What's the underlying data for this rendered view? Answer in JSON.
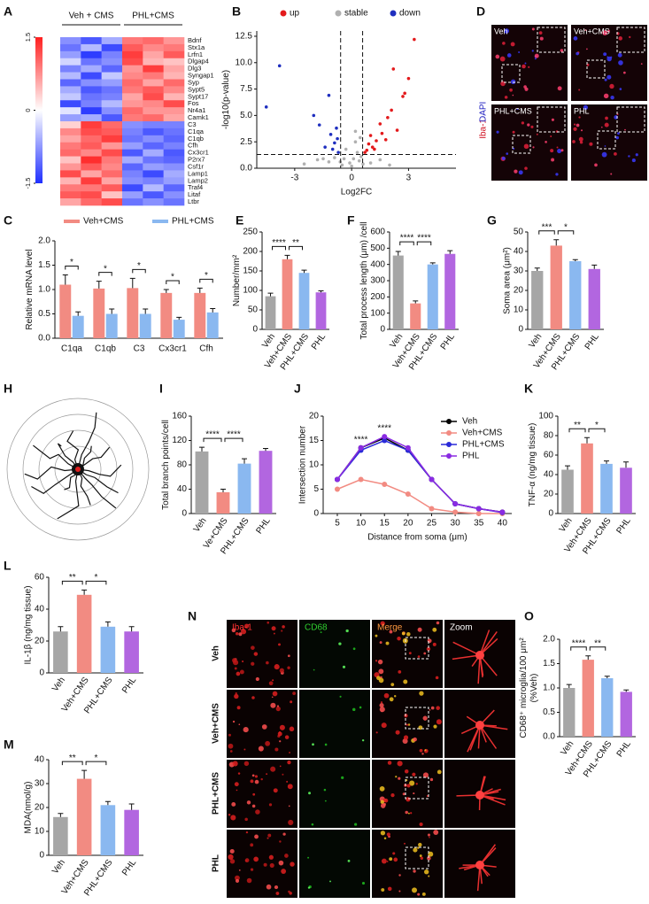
{
  "chart_data": [
    {
      "panel": "A",
      "type": "heatmap",
      "groups": [
        "Veh + CMS",
        "PHL+CMS"
      ],
      "genes": [
        "Bdnf",
        "Stx1a",
        "Lrfn1",
        "Dlgap4",
        "Dlg3",
        "Syngap1",
        "Syp",
        "Sypt5",
        "Sypt17",
        "Fos",
        "Nr4a1",
        "Camk1",
        "C3",
        "C1qa",
        "C1qb",
        "Cfh",
        "Cx3cr1",
        "P2rx7",
        "Csf1r",
        "Lamp1",
        "Lamp2",
        "Traf4",
        "Litaf",
        "Ltbr"
      ],
      "values": [
        [
          -0.8,
          -1.2,
          -0.6,
          0.9,
          1.0,
          0.7
        ],
        [
          -1.0,
          -0.5,
          -1.3,
          1.1,
          0.8,
          0.9
        ],
        [
          -0.7,
          -1.4,
          -0.9,
          1.3,
          0.6,
          1.1
        ],
        [
          -0.3,
          -1.0,
          -0.8,
          1.2,
          0.5,
          0.4
        ],
        [
          -0.9,
          -0.6,
          -1.1,
          0.7,
          1.3,
          0.6
        ],
        [
          -0.5,
          -1.3,
          -0.4,
          0.8,
          0.9,
          0.5
        ],
        [
          -1.1,
          -0.8,
          -0.7,
          1.0,
          0.6,
          1.0
        ],
        [
          -0.6,
          -1.2,
          -1.0,
          0.9,
          1.1,
          0.8
        ],
        [
          -0.4,
          -1.0,
          -0.9,
          0.6,
          1.2,
          0.5
        ],
        [
          -1.3,
          -0.9,
          -0.5,
          0.7,
          0.8,
          1.2
        ],
        [
          -0.2,
          -1.4,
          -0.8,
          1.0,
          0.7,
          0.7
        ],
        [
          -0.7,
          -0.6,
          -1.2,
          0.9,
          1.0,
          0.6
        ],
        [
          0.3,
          1.3,
          1.0,
          -0.8,
          -0.9,
          -0.9
        ],
        [
          0.8,
          1.2,
          1.1,
          -0.9,
          -1.2,
          -1.0
        ],
        [
          0.6,
          1.0,
          1.3,
          -1.0,
          -0.8,
          -1.1
        ],
        [
          0.9,
          1.1,
          0.7,
          -0.7,
          -1.1,
          -0.9
        ],
        [
          1.0,
          0.8,
          1.2,
          -1.2,
          -0.6,
          -1.2
        ],
        [
          0.4,
          1.4,
          0.9,
          -0.6,
          -1.0,
          -1.1
        ],
        [
          0.7,
          1.1,
          0.8,
          -1.1,
          -0.7,
          -0.8
        ],
        [
          1.2,
          0.6,
          1.0,
          -0.9,
          -1.3,
          -0.6
        ],
        [
          0.5,
          1.3,
          0.6,
          -0.8,
          -0.9,
          -0.7
        ],
        [
          0.9,
          0.9,
          1.1,
          -1.3,
          -0.5,
          -1.1
        ],
        [
          1.1,
          1.2,
          0.4,
          -0.7,
          -1.2,
          -0.8
        ],
        [
          0.6,
          1.0,
          1.2,
          -1.0,
          -0.8,
          -1.0
        ]
      ],
      "clim": [
        -1.5,
        1.5
      ],
      "cticks": [
        1.5,
        0,
        -1.5
      ],
      "low_color": "#1f2fff",
      "mid_color": "#ffffff",
      "high_color": "#ff1f1f"
    },
    {
      "panel": "B",
      "type": "scatter",
      "xlabel": "Log2FC",
      "ylabel": "-log10(p-value)",
      "xlim": [
        -5,
        5.5
      ],
      "xticks": [
        -3,
        0,
        3
      ],
      "ylim": [
        0,
        13
      ],
      "yticks": [
        {
          "value": 0,
          "label": "0.0"
        },
        {
          "value": 2.5,
          "label": "2.5"
        },
        {
          "value": 5,
          "label": "5.0"
        },
        {
          "value": 7.5,
          "label": "7.5"
        },
        {
          "value": 10,
          "label": "10.0"
        },
        {
          "value": 12.5,
          "label": "12.5"
        }
      ],
      "thresholds": {
        "x": [
          -0.58,
          0.58
        ],
        "y": 1.3
      },
      "series": [
        {
          "name": "up",
          "color": "#e31a1c",
          "x": [
            0.7,
            0.9,
            1.0,
            1.2,
            1.5,
            1.8,
            2.1,
            2.4,
            2.7,
            3.0,
            3.3,
            1.1,
            1.6,
            2.2,
            0.8,
            1.3,
            1.9,
            2.8
          ],
          "values": [
            1.5,
            2.3,
            3.1,
            1.8,
            4.2,
            2.7,
            5.5,
            3.6,
            6.8,
            8.5,
            12.2,
            2.0,
            3.3,
            9.4,
            1.7,
            2.6,
            4.8,
            7.1
          ]
        },
        {
          "name": "stable",
          "color": "#b0b0b0",
          "x": [
            -2.5,
            -1.8,
            -1.2,
            -0.9,
            -0.5,
            -0.3,
            -0.1,
            0.0,
            0.1,
            0.2,
            0.3,
            0.4,
            0.5,
            -0.4,
            0.2,
            1.0,
            1.5,
            2.0,
            -1.5,
            0.6,
            -0.6,
            0.45
          ],
          "values": [
            0.4,
            0.8,
            0.6,
            1.0,
            0.3,
            1.8,
            0.5,
            0.2,
            0.9,
            2.5,
            1.5,
            0.7,
            1.1,
            0.9,
            3.5,
            0.5,
            0.8,
            0.3,
            0.9,
            0.4,
            0.6,
            2.9
          ]
        },
        {
          "name": "down",
          "color": "#1f2fbf",
          "x": [
            -0.7,
            -0.9,
            -1.1,
            -1.4,
            -1.7,
            -2.0,
            -0.8,
            -1.2,
            -4.5,
            -3.8,
            -1.0,
            -0.75
          ],
          "values": [
            1.5,
            2.4,
            3.2,
            2.0,
            4.1,
            5.0,
            3.8,
            6.9,
            5.8,
            9.7,
            1.8,
            2.8
          ]
        }
      ]
    },
    {
      "panel": "C",
      "type": "bar",
      "categories": [
        "C1qa",
        "C1qb",
        "C3",
        "Cx3cr1",
        "Cfh"
      ],
      "ylabel": "Relative mRNA level",
      "ylim": [
        0,
        2
      ],
      "yticks": [
        {
          "value": 0,
          "label": "0.0"
        },
        {
          "value": 0.5,
          "label": "0.5"
        },
        {
          "value": 1,
          "label": "1.0"
        },
        {
          "value": 1.5,
          "label": "1.5"
        },
        {
          "value": 2,
          "label": "2.0"
        }
      ],
      "series": [
        {
          "name": "Veh+CMS",
          "color": "#f28b82",
          "values": [
            1.1,
            1.02,
            1.03,
            0.93,
            0.93
          ],
          "errors": [
            0.2,
            0.15,
            0.2,
            0.07,
            0.1
          ]
        },
        {
          "name": "PHL+CMS",
          "color": "#8ab8f0",
          "values": [
            0.46,
            0.5,
            0.5,
            0.38,
            0.53
          ],
          "errors": [
            0.08,
            0.1,
            0.1,
            0.05,
            0.08
          ]
        }
      ],
      "significance": [
        {
          "category": "C1qa",
          "label": "*"
        },
        {
          "category": "C1qb",
          "label": "*"
        },
        {
          "category": "C3",
          "label": "*"
        },
        {
          "category": "Cx3cr1",
          "label": "*"
        },
        {
          "category": "Cfh",
          "label": "*"
        }
      ]
    },
    {
      "panel": "E",
      "type": "bar",
      "categories": [
        "Veh",
        "Veh+CMS",
        "PHL+CMS",
        "PHL"
      ],
      "colors": [
        "#a6a6a6",
        "#f28b82",
        "#8ab8f0",
        "#b266e0"
      ],
      "values": [
        85,
        180,
        145,
        95
      ],
      "errors": [
        8,
        10,
        7,
        4
      ],
      "ylabel": "Number/mm²",
      "ylim": [
        0,
        250
      ],
      "yticks": [
        0,
        50,
        100,
        150,
        200,
        250
      ],
      "significance": [
        {
          "pair": [
            "Veh",
            "Veh+CMS"
          ],
          "label": "****"
        },
        {
          "pair": [
            "Veh+CMS",
            "PHL+CMS"
          ],
          "label": "**"
        }
      ]
    },
    {
      "panel": "F",
      "type": "bar",
      "categories": [
        "Veh",
        "Veh+CMS",
        "PHL+CMS",
        "PHL"
      ],
      "colors": [
        "#a6a6a6",
        "#f28b82",
        "#8ab8f0",
        "#b266e0"
      ],
      "values": [
        455,
        160,
        400,
        465
      ],
      "errors": [
        25,
        15,
        10,
        20
      ],
      "ylabel": "Total process length (μm) /cell",
      "ylim": [
        0,
        600
      ],
      "yticks": [
        0,
        100,
        200,
        300,
        400,
        500,
        600
      ],
      "significance": [
        {
          "pair": [
            "Veh",
            "Veh+CMS"
          ],
          "label": "****"
        },
        {
          "pair": [
            "Veh+CMS",
            "PHL+CMS"
          ],
          "label": "****"
        }
      ]
    },
    {
      "panel": "G",
      "type": "bar",
      "categories": [
        "Veh",
        "Veh+CMS",
        "PHL+CMS",
        "PHL"
      ],
      "colors": [
        "#a6a6a6",
        "#f28b82",
        "#8ab8f0",
        "#b266e0"
      ],
      "values": [
        30,
        43,
        35,
        31
      ],
      "errors": [
        1.5,
        3,
        0.8,
        2
      ],
      "ylabel": "Soma area (μm²)",
      "ylim": [
        0,
        50
      ],
      "yticks": [
        0,
        10,
        20,
        30,
        40,
        50
      ],
      "significance": [
        {
          "pair": [
            "Veh",
            "Veh+CMS"
          ],
          "label": "***"
        },
        {
          "pair": [
            "Veh+CMS",
            "PHL+CMS"
          ],
          "label": "*"
        }
      ]
    },
    {
      "panel": "I",
      "type": "bar",
      "categories": [
        "Veh",
        "Ve+CMS",
        "PHL+CMS",
        "PHL"
      ],
      "colors": [
        "#a6a6a6",
        "#f28b82",
        "#8ab8f0",
        "#b266e0"
      ],
      "values": [
        102,
        35,
        82,
        103
      ],
      "errors": [
        7,
        5,
        8,
        4
      ],
      "ylabel": "Total branch points/cell",
      "ylim": [
        0,
        160
      ],
      "yticks": [
        0,
        40,
        80,
        120,
        160
      ],
      "significance": [
        {
          "pair": [
            "Veh",
            "Ve+CMS"
          ],
          "label": "****"
        },
        {
          "pair": [
            "Ve+CMS",
            "PHL+CMS"
          ],
          "label": "****"
        }
      ]
    },
    {
      "panel": "J",
      "type": "line",
      "xlabel": "Distance from soma (μm)",
      "ylabel": "Intersection number",
      "xlim": [
        2,
        42
      ],
      "xticks": [
        5,
        10,
        15,
        20,
        25,
        30,
        35,
        40
      ],
      "ylim": [
        0,
        20
      ],
      "yticks": [
        0,
        5,
        10,
        15,
        20
      ],
      "x": [
        5,
        10,
        15,
        20,
        25,
        30,
        35,
        40
      ],
      "series": [
        {
          "name": "Veh",
          "color": "#000000",
          "values": [
            7,
            13.5,
            15.5,
            13,
            7,
            2,
            1,
            0.3
          ]
        },
        {
          "name": "Veh+CMS",
          "color": "#f28b82",
          "values": [
            5,
            7,
            6,
            4,
            1,
            0.3,
            0,
            0
          ]
        },
        {
          "name": "PHL+CMS",
          "color": "#2a2ad8",
          "values": [
            7,
            13,
            15,
            13,
            7,
            2,
            1,
            0.2
          ]
        },
        {
          "name": "PHL",
          "color": "#8a2be2",
          "values": [
            7,
            13.5,
            15.8,
            13.5,
            7,
            2,
            1,
            0.3
          ]
        }
      ],
      "annotations": [
        {
          "x": 10,
          "label": "****"
        },
        {
          "x": 15,
          "label": "****"
        }
      ]
    },
    {
      "panel": "K",
      "type": "bar",
      "categories": [
        "Veh",
        "Veh+CMS",
        "PHL+CMS",
        "PHL"
      ],
      "colors": [
        "#a6a6a6",
        "#f28b82",
        "#8ab8f0",
        "#b266e0"
      ],
      "values": [
        45,
        72,
        51,
        47
      ],
      "errors": [
        4,
        6,
        3,
        6
      ],
      "ylabel": "TNF-α (ng/mg tissue)",
      "ylim": [
        0,
        100
      ],
      "yticks": [
        0,
        20,
        40,
        60,
        80,
        100
      ],
      "significance": [
        {
          "pair": [
            "Veh",
            "Veh+CMS"
          ],
          "label": "**"
        },
        {
          "pair": [
            "Veh+CMS",
            "PHL+CMS"
          ],
          "label": "*"
        }
      ]
    },
    {
      "panel": "L",
      "type": "bar",
      "categories": [
        "Veh",
        "Veh+CMS",
        "PHL+CMS",
        "PHL"
      ],
      "colors": [
        "#a6a6a6",
        "#f28b82",
        "#8ab8f0",
        "#b266e0"
      ],
      "values": [
        26,
        49,
        29,
        26
      ],
      "errors": [
        3,
        3,
        3,
        3
      ],
      "ylabel": "IL-1β (ng/mg tissue)",
      "ylim": [
        0,
        60
      ],
      "yticks": [
        0,
        20,
        40,
        60
      ],
      "significance": [
        {
          "pair": [
            "Veh",
            "Veh+CMS"
          ],
          "label": "**"
        },
        {
          "pair": [
            "Veh+CMS",
            "PHL+CMS"
          ],
          "label": "*"
        }
      ]
    },
    {
      "panel": "M",
      "type": "bar",
      "categories": [
        "Veh",
        "Veh+CMS",
        "PHL+CMS",
        "PHL"
      ],
      "colors": [
        "#a6a6a6",
        "#f28b82",
        "#8ab8f0",
        "#b266e0"
      ],
      "values": [
        16,
        32,
        21,
        19
      ],
      "errors": [
        1.5,
        3.5,
        1.5,
        2.5
      ],
      "ylabel": "MDA(nmol/g)",
      "ylim": [
        0,
        40
      ],
      "yticks": [
        0,
        10,
        20,
        30,
        40
      ],
      "significance": [
        {
          "pair": [
            "Veh",
            "Veh+CMS"
          ],
          "label": "**"
        },
        {
          "pair": [
            "Veh+CMS",
            "PHL+CMS"
          ],
          "label": "*"
        }
      ]
    },
    {
      "panel": "O",
      "type": "bar",
      "categories": [
        "Veh",
        "Veh+CMS",
        "PHL+CMS",
        "PHL"
      ],
      "colors": [
        "#a6a6a6",
        "#f28b82",
        "#8ab8f0",
        "#b266e0"
      ],
      "values": [
        1.0,
        1.58,
        1.2,
        0.92
      ],
      "errors": [
        0.07,
        0.08,
        0.04,
        0.04
      ],
      "ylabel": [
        "CD68⁺ microglia/100 μm²",
        "(%Veh)"
      ],
      "ylim": [
        0,
        2
      ],
      "yticks": [
        {
          "value": 0,
          "label": "0.0"
        },
        {
          "value": 0.5,
          "label": "0.5"
        },
        {
          "value": 1,
          "label": "1.0"
        },
        {
          "value": 1.5,
          "label": "1.5"
        },
        {
          "value": 2,
          "label": "2.0"
        }
      ],
      "significance": [
        {
          "pair": [
            "Veh",
            "Veh+CMS"
          ],
          "label": "****"
        },
        {
          "pair": [
            "Veh+CMS",
            "PHL+CMS"
          ],
          "label": "**"
        }
      ]
    }
  ],
  "image_panels": {
    "D": {
      "panel": "D",
      "labels": [
        "Veh",
        "Veh+CMS",
        "PHL+CMS",
        "PHL"
      ],
      "channels": [
        "Iba-1",
        "DAPI"
      ]
    },
    "H": {
      "panel": "H"
    },
    "N": {
      "panel": "N",
      "columns": [
        "Iba-1",
        "CD68",
        "Merge",
        "Zoom"
      ],
      "rows": [
        "Veh",
        "Veh+CMS",
        "PHL+CMS",
        "PHL"
      ]
    }
  }
}
